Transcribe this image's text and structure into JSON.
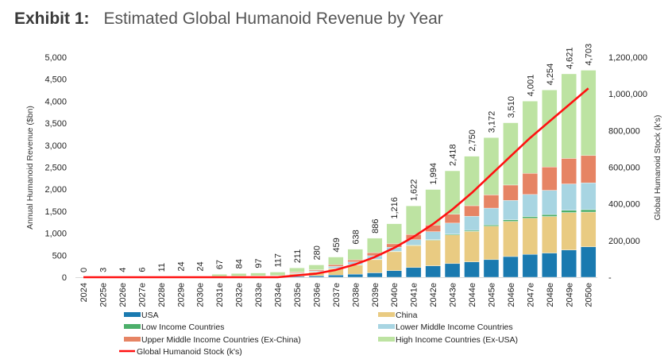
{
  "header": {
    "exhibit_label": "Exhibit 1:",
    "title": "Estimated Global Humanoid Revenue by Year"
  },
  "chart_data": {
    "type": "bar",
    "stacked": true,
    "title": "Estimated Global Humanoid Revenue by Year",
    "ylabel": "Annual Humanoid Revenue ($bn)",
    "y2label": "Global Humanoid Stock (k's)",
    "ylim": [
      0,
      5000
    ],
    "y2lim": [
      0,
      1200000
    ],
    "yticks": [
      "0",
      "500",
      "1,000",
      "1,500",
      "2,000",
      "2,500",
      "3,000",
      "3,500",
      "4,000",
      "4,500",
      "5,000"
    ],
    "y2ticks": [
      "-",
      "200,000",
      "400,000",
      "600,000",
      "800,000",
      "1,000,000",
      "1,200,000"
    ],
    "categories": [
      "2024",
      "2025e",
      "2026e",
      "2027e",
      "2028e",
      "2029e",
      "2030e",
      "2031e",
      "2032e",
      "2033e",
      "2034e",
      "2035e",
      "2036e",
      "2037e",
      "2038e",
      "2039e",
      "2040e",
      "2041e",
      "2042e",
      "2043e",
      "2044e",
      "2045e",
      "2046e",
      "2047e",
      "2048e",
      "2049e",
      "2050e"
    ],
    "totals": [
      0,
      3,
      4,
      6,
      11,
      24,
      24,
      67,
      84,
      97,
      117,
      211,
      280,
      459,
      638,
      886,
      1216,
      1622,
      1994,
      2418,
      2750,
      3172,
      3510,
      4001,
      4254,
      4621,
      4703
    ],
    "total_labels": [
      "0",
      "3",
      "4",
      "6",
      "11",
      "24",
      "24",
      "67",
      "84",
      "97",
      "117",
      "211",
      "280",
      "459",
      "638",
      "886",
      "1,216",
      "1,622",
      "1,994",
      "2,418",
      "2,750",
      "3,172",
      "3,510",
      "4,001",
      "4,254",
      "4,621",
      "4,703"
    ],
    "series": [
      {
        "name": "USA",
        "color": "#1a7ab0",
        "values": [
          0,
          0,
          0,
          0,
          1,
          2,
          2,
          4,
          5,
          6,
          7,
          20,
          30,
          50,
          70,
          100,
          150,
          220,
          260,
          310,
          350,
          400,
          470,
          520,
          550,
          620,
          690
        ]
      },
      {
        "name": "China",
        "color": "#e9cb82",
        "values": [
          0,
          1,
          1,
          2,
          3,
          6,
          6,
          10,
          12,
          14,
          17,
          60,
          90,
          150,
          210,
          300,
          430,
          500,
          580,
          650,
          690,
          760,
          800,
          820,
          830,
          850,
          790
        ]
      },
      {
        "name": "Low Income Countries",
        "color": "#4caf6a",
        "values": [
          0,
          0,
          0,
          0,
          0,
          0,
          0,
          0,
          0,
          0,
          0,
          2,
          3,
          5,
          6,
          8,
          10,
          12,
          15,
          20,
          25,
          30,
          35,
          40,
          45,
          50,
          55
        ]
      },
      {
        "name": "Lower Middle Income Countries",
        "color": "#a8d5e2",
        "values": [
          0,
          0,
          0,
          0,
          1,
          2,
          2,
          4,
          5,
          6,
          7,
          15,
          22,
          40,
          60,
          80,
          90,
          120,
          180,
          250,
          320,
          380,
          440,
          500,
          550,
          600,
          610
        ]
      },
      {
        "name": "Upper Middle Income Countries (Ex-China)",
        "color": "#e68464",
        "values": [
          0,
          0,
          0,
          0,
          1,
          2,
          2,
          4,
          5,
          6,
          7,
          20,
          25,
          40,
          50,
          70,
          80,
          120,
          150,
          200,
          240,
          300,
          350,
          480,
          530,
          580,
          620
        ]
      },
      {
        "name": "High Income Countries (Ex-USA)",
        "color": "#bde3a2",
        "values": [
          0,
          2,
          3,
          4,
          5,
          12,
          12,
          45,
          57,
          65,
          79,
          94,
          110,
          174,
          242,
          328,
          456,
          650,
          809,
          988,
          1125,
          1302,
          1415,
          1641,
          1749,
          1921,
          1938
        ]
      }
    ],
    "line_series": {
      "name": "Global Humanoid Stock (k's)",
      "color": "#ff1111",
      "axis": "right",
      "values": [
        0,
        0,
        0,
        0,
        0,
        0,
        0,
        0,
        0,
        0,
        0,
        10000,
        20000,
        40000,
        70000,
        110000,
        160000,
        220000,
        290000,
        370000,
        460000,
        560000,
        660000,
        760000,
        850000,
        940000,
        1030000
      ]
    },
    "legend": {
      "placement": "bottom",
      "items": [
        {
          "label": "USA",
          "color": "#1a7ab0",
          "kind": "bar"
        },
        {
          "label": "China",
          "color": "#e9cb82",
          "kind": "bar"
        },
        {
          "label": "Low Income Countries",
          "color": "#4caf6a",
          "kind": "bar"
        },
        {
          "label": "Lower Middle Income Countries",
          "color": "#a8d5e2",
          "kind": "bar"
        },
        {
          "label": "Upper Middle Income Countries (Ex-China)",
          "color": "#e68464",
          "kind": "bar"
        },
        {
          "label": "High Income Countries (Ex-USA)",
          "color": "#bde3a2",
          "kind": "bar"
        },
        {
          "label": "Global Humanoid Stock (k's)",
          "color": "#ff1111",
          "kind": "line"
        }
      ]
    },
    "grid": false
  }
}
